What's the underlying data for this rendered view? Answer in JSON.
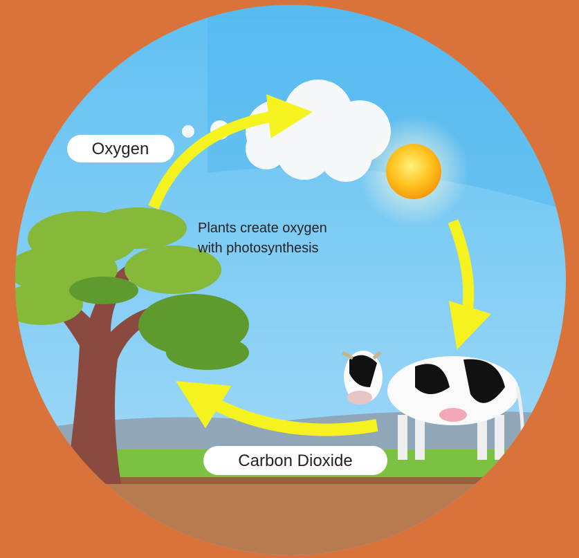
{
  "labels": {
    "oxygen": "Oxygen",
    "carbon_dioxide": "Carbon Dioxide"
  },
  "caption": {
    "lines": [
      "Plants create oxygen",
      "with photosynthesis"
    ]
  }
}
